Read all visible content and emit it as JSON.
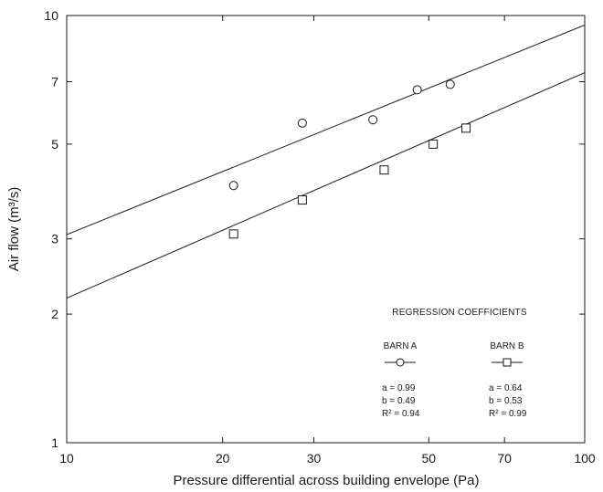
{
  "chart_data": {
    "type": "scatter",
    "xlabel": "Pressure differential across building envelope (Pa)",
    "ylabel": "Air flow (m³/s)",
    "xscale": "log",
    "yscale": "log",
    "xlim": [
      10,
      100
    ],
    "ylim": [
      1,
      10
    ],
    "xticks": [
      "10",
      "20",
      "30",
      "50",
      "70",
      "100"
    ],
    "yticks": [
      "1",
      "2",
      "3",
      "5",
      "7",
      "10"
    ],
    "grid": false,
    "series": [
      {
        "name": "BARN A",
        "marker": "circle",
        "x": [
          21,
          28.5,
          39,
          47.5,
          55
        ],
        "y": [
          4.0,
          5.6,
          5.7,
          6.7,
          6.9
        ],
        "fit": {
          "x": [
            10,
            100
          ],
          "y": [
            3.07,
            9.5
          ]
        }
      },
      {
        "name": "BARN B",
        "marker": "square",
        "x": [
          21,
          28.5,
          41,
          51,
          59
        ],
        "y": [
          3.08,
          3.7,
          4.35,
          5.0,
          5.45
        ],
        "fit": {
          "x": [
            10,
            100
          ],
          "y": [
            2.18,
            7.35
          ]
        }
      }
    ],
    "legend": {
      "position": "bottom-right",
      "title": "REGRESSION COEFFICIENTS",
      "entries": [
        {
          "label": "BARN A",
          "marker": "circle",
          "lines": [
            "a = 0.99",
            "b = 0.49",
            "R² = 0.94"
          ]
        },
        {
          "label": "BARN B",
          "marker": "square",
          "lines": [
            "a = 0.64",
            "b = 0.53",
            "R² = 0.99"
          ]
        }
      ]
    }
  }
}
